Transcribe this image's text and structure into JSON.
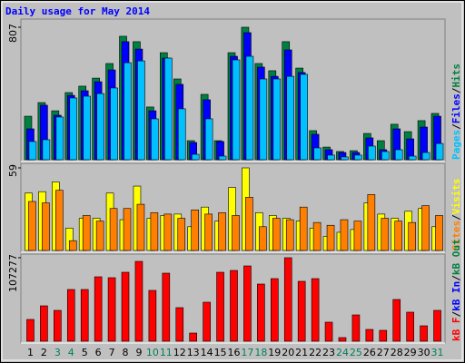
{
  "title": "Daily usage for May 2014",
  "legend_separator": "/",
  "chart_data": [
    {
      "type": "bar",
      "ylim": [
        0,
        807
      ],
      "yticks": [
        807
      ],
      "series": [
        {
          "name": "Pages",
          "color": "#00c0ff",
          "values": [
            111,
            122,
            260,
            376,
            387,
            403,
            437,
            591,
            602,
            249,
            619,
            310,
            33,
            249,
            22,
            608,
            630,
            492,
            492,
            508,
            520,
            72,
            28,
            17,
            28,
            83,
            50,
            61,
            22,
            44,
            99
          ]
        },
        {
          "name": "Files",
          "color": "#0000ff",
          "values": [
            188,
            332,
            271,
            392,
            420,
            475,
            547,
            719,
            674,
            298,
            619,
            459,
            105,
            365,
            111,
            630,
            774,
            564,
            508,
            669,
            531,
            155,
            61,
            44,
            44,
            133,
            61,
            188,
            127,
            199,
            265
          ]
        },
        {
          "name": "Hits",
          "color": "#008040",
          "values": [
            265,
            348,
            298,
            409,
            448,
            497,
            586,
            752,
            719,
            321,
            652,
            492,
            116,
            398,
            116,
            652,
            807,
            586,
            542,
            719,
            558,
            177,
            77,
            50,
            55,
            160,
            116,
            216,
            171,
            238,
            282
          ]
        }
      ]
    },
    {
      "type": "bar",
      "ylim": [
        0,
        59
      ],
      "yticks": [
        59
      ],
      "series": [
        {
          "name": "Sites",
          "color": "#ff8000",
          "values": [
            35,
            34,
            43,
            7,
            25,
            21,
            30,
            30,
            33,
            27,
            26,
            23,
            29,
            26,
            27,
            25,
            38,
            17,
            23,
            22,
            31,
            20,
            18,
            22,
            21,
            40,
            23,
            21,
            20,
            32,
            25
          ]
        },
        {
          "name": "Visits",
          "color": "#ffff00",
          "values": [
            41,
            42,
            49,
            16,
            23,
            23,
            41,
            22,
            46,
            23,
            25,
            26,
            17,
            31,
            21,
            45,
            59,
            27,
            25,
            23,
            21,
            16,
            10,
            13,
            15,
            34,
            26,
            23,
            28,
            30,
            17
          ]
        }
      ]
    },
    {
      "type": "bar",
      "ylim": [
        0,
        107277
      ],
      "yticks": [
        107277
      ],
      "categories": [
        "1",
        "2",
        "3",
        "4",
        "5",
        "6",
        "7",
        "8",
        "9",
        "10",
        "11",
        "12",
        "13",
        "14",
        "15",
        "16",
        "17",
        "18",
        "19",
        "20",
        "21",
        "22",
        "23",
        "24",
        "25",
        "26",
        "27",
        "28",
        "29",
        "30",
        "31"
      ],
      "category_colors": [
        "#000000",
        "#000000",
        "#00805c",
        "#00805c",
        "#000000",
        "#000000",
        "#000000",
        "#000000",
        "#000000",
        "#00805c",
        "#00805c",
        "#000000",
        "#000000",
        "#000000",
        "#000000",
        "#000000",
        "#00805c",
        "#00805c",
        "#000000",
        "#000000",
        "#000000",
        "#000000",
        "#000000",
        "#00805c",
        "#00805c",
        "#000000",
        "#000000",
        "#000000",
        "#000000",
        "#000000",
        "#00805c"
      ],
      "series": [
        {
          "name": "kB F",
          "color": "#ff0000",
          "values": [
            27984,
            45474,
            39644,
            66462,
            66462,
            82786,
            81620,
            88616,
            102608,
            65296,
            87450,
            43142,
            10494,
            50138,
            88616,
            90948,
            96778,
            73458,
            80454,
            107277,
            76956,
            80454,
            24486,
            4664,
            33814,
            15158,
            13992,
            53636,
            37312,
            19822,
            39644
          ]
        }
      ],
      "legend_only": [
        {
          "name": "kB In",
          "color": "#0000ff"
        },
        {
          "name": "kB Out",
          "color": "#008040"
        }
      ]
    }
  ]
}
